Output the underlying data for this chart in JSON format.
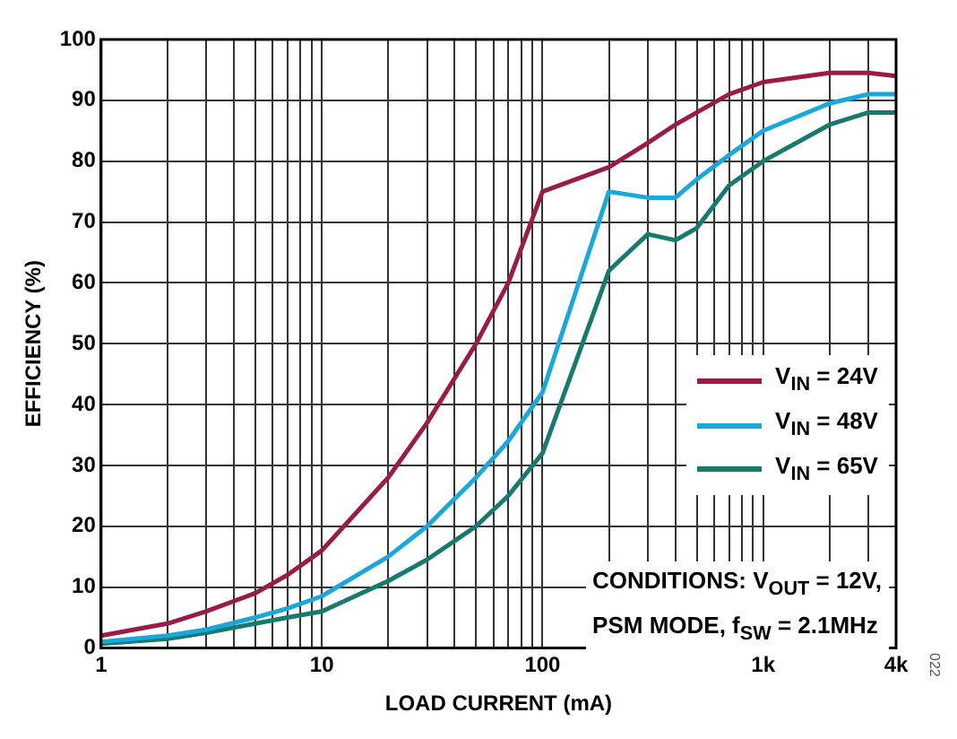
{
  "chart_data": {
    "type": "line",
    "xlabel": "LOAD CURRENT (mA)",
    "ylabel": "EFFICIENCY (%)",
    "log": "x",
    "xlim": [
      1,
      4000
    ],
    "ylim": [
      0,
      100
    ],
    "xticks": [
      1,
      {
        "value": 2,
        "label": null
      },
      {
        "value": 3,
        "label": null
      },
      {
        "value": 4,
        "label": null
      },
      {
        "value": 5,
        "label": null
      },
      {
        "value": 6,
        "label": null
      },
      {
        "value": 7,
        "label": null
      },
      {
        "value": 8,
        "label": null
      },
      {
        "value": 9,
        "label": null
      },
      10,
      {
        "value": 20,
        "label": null
      },
      {
        "value": 30,
        "label": null
      },
      {
        "value": 40,
        "label": null
      },
      {
        "value": 50,
        "label": null
      },
      {
        "value": 60,
        "label": null
      },
      {
        "value": 70,
        "label": null
      },
      {
        "value": 80,
        "label": null
      },
      {
        "value": 90,
        "label": null
      },
      100,
      {
        "value": 200,
        "label": null
      },
      {
        "value": 300,
        "label": null
      },
      {
        "value": 400,
        "label": null
      },
      {
        "value": 500,
        "label": null
      },
      {
        "value": 600,
        "label": null
      },
      {
        "value": 700,
        "label": null
      },
      {
        "value": 800,
        "label": null
      },
      {
        "value": 900,
        "label": null
      },
      {
        "value": 1000,
        "label": "1k"
      },
      {
        "value": 2000,
        "label": null
      },
      {
        "value": 3000,
        "label": null
      },
      {
        "value": 4000,
        "label": "4k"
      }
    ],
    "yticks": [
      0,
      10,
      20,
      30,
      40,
      50,
      60,
      70,
      80,
      90,
      100
    ],
    "grid": true,
    "legend": "right",
    "marker": "none",
    "line_style": "solid",
    "x": [
      1,
      2,
      3,
      5,
      7,
      10,
      20,
      30,
      50,
      70,
      100,
      200,
      300,
      400,
      500,
      700,
      1000,
      2000,
      3000,
      4000
    ],
    "series": [
      {
        "name": "V$_{IN}$ = 24V",
        "color": "#9b1b48",
        "values": [
          2,
          4,
          6,
          9,
          12,
          16,
          28,
          37,
          50,
          60,
          75,
          79,
          83,
          86,
          88,
          91,
          93,
          94.5,
          94.5,
          94
        ]
      },
      {
        "name": "V$_{IN}$ = 48V",
        "color": "#1aa7dc",
        "values": [
          1,
          2,
          3,
          5,
          6.5,
          8.5,
          15,
          20,
          28,
          34,
          42,
          75,
          74,
          74,
          77,
          81,
          85,
          89.5,
          91,
          91
        ]
      },
      {
        "name": "V$_{IN}$ = 65V",
        "color": "#167a6e",
        "values": [
          0.7,
          1.5,
          2.5,
          4,
          5,
          6,
          11,
          14.5,
          20,
          25,
          32,
          62,
          68,
          67,
          69,
          76,
          80,
          86,
          88,
          88
        ]
      }
    ],
    "annotations": [
      "CONDITIONS: V$_{OUT}$ = 12V,\nPSM MODE, f$_{SW}$ = 2.1MHz",
      "022"
    ]
  }
}
